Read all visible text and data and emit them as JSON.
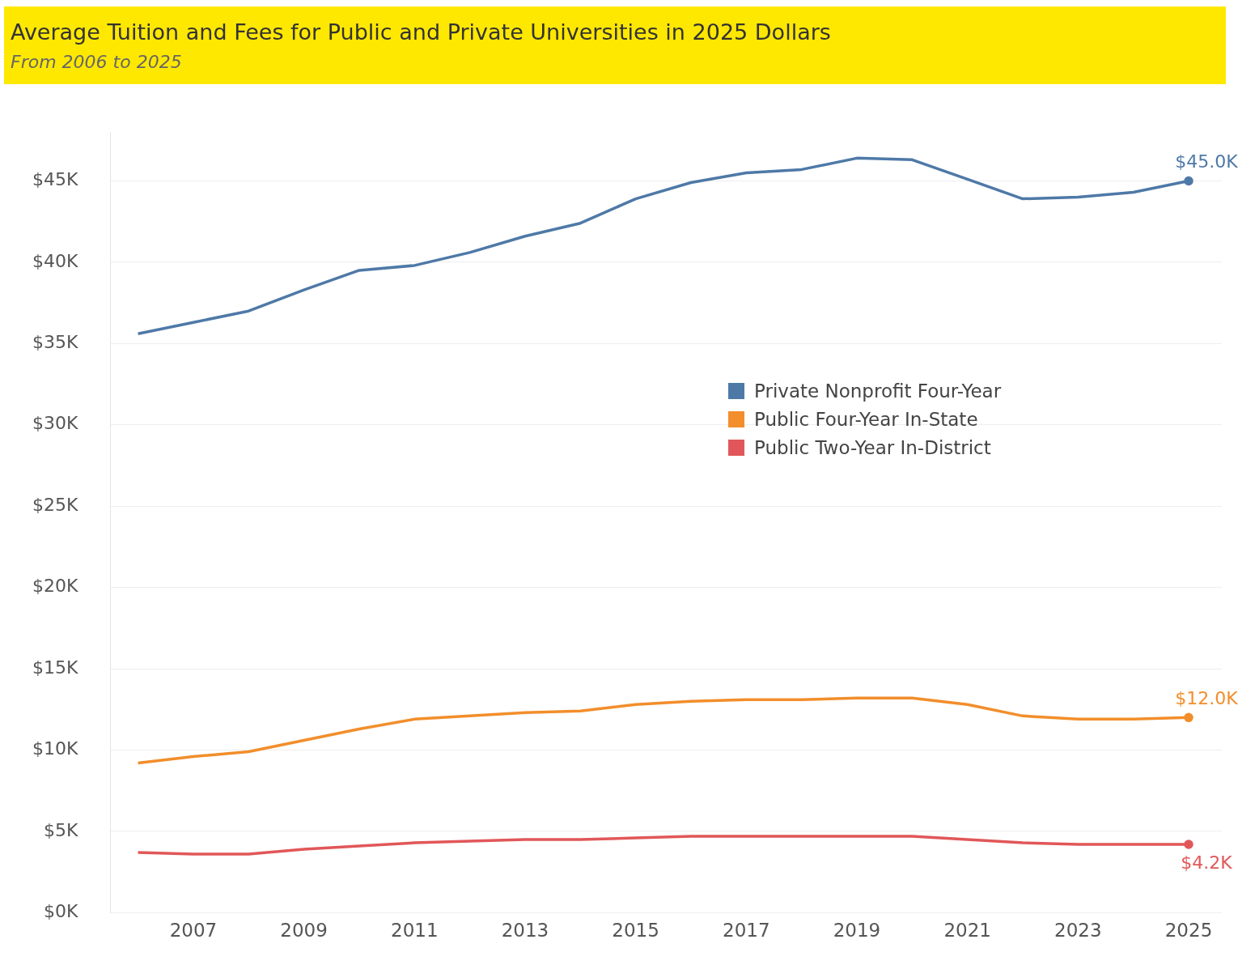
{
  "chart_data": {
    "type": "line",
    "title": "Average Tuition and Fees for Public and Private Universities in 2025 Dollars",
    "subtitle": "From 2006 to 2025",
    "x": [
      2006,
      2007,
      2008,
      2009,
      2010,
      2011,
      2012,
      2013,
      2014,
      2015,
      2016,
      2017,
      2018,
      2019,
      2020,
      2021,
      2022,
      2023,
      2024,
      2025
    ],
    "series": [
      {
        "name": "Private Nonprofit Four-Year",
        "color": "#4e79a7",
        "values": [
          35.6,
          36.3,
          37.0,
          38.3,
          39.5,
          39.8,
          40.6,
          41.6,
          42.4,
          43.9,
          44.9,
          45.5,
          45.7,
          46.4,
          46.3,
          45.1,
          43.9,
          44.0,
          44.3,
          45.0
        ],
        "value_labels": [
          null,
          null,
          null,
          null,
          null,
          null,
          null,
          null,
          null,
          null,
          null,
          null,
          null,
          null,
          null,
          null,
          null,
          null,
          null,
          "$45.0K"
        ]
      },
      {
        "name": "Public Four-Year In-State",
        "color": "#f28e2b",
        "values": [
          9.2,
          9.6,
          9.9,
          10.6,
          11.3,
          11.9,
          12.1,
          12.3,
          12.4,
          12.8,
          13.0,
          13.1,
          13.1,
          13.2,
          13.2,
          12.8,
          12.1,
          11.9,
          11.9,
          12.0
        ],
        "value_labels": [
          null,
          null,
          null,
          null,
          null,
          null,
          null,
          null,
          null,
          null,
          null,
          null,
          null,
          null,
          null,
          null,
          null,
          null,
          null,
          "$12.0K"
        ]
      },
      {
        "name": "Public Two-Year In-District",
        "color": "#e15759",
        "values": [
          3.7,
          3.6,
          3.6,
          3.9,
          4.1,
          4.3,
          4.4,
          4.5,
          4.5,
          4.6,
          4.7,
          4.7,
          4.7,
          4.7,
          4.7,
          4.5,
          4.3,
          4.2,
          4.2,
          4.2
        ],
        "value_labels": [
          null,
          null,
          null,
          null,
          null,
          null,
          null,
          null,
          null,
          null,
          null,
          null,
          null,
          null,
          null,
          null,
          null,
          null,
          null,
          "$4.2K"
        ]
      }
    ],
    "xlim": [
      2005.5,
      2025.6
    ],
    "xticks": [
      2007,
      2009,
      2011,
      2013,
      2015,
      2017,
      2019,
      2021,
      2023,
      2025
    ],
    "ylim": [
      0,
      48
    ],
    "yticks": [
      {
        "value": 0,
        "label": "$0K"
      },
      {
        "value": 5,
        "label": "$5K"
      },
      {
        "value": 10,
        "label": "$10K"
      },
      {
        "value": 15,
        "label": "$15K"
      },
      {
        "value": 20,
        "label": "$20K"
      },
      {
        "value": 25,
        "label": "$25K"
      },
      {
        "value": 30,
        "label": "$30K"
      },
      {
        "value": 35,
        "label": "$35K"
      },
      {
        "value": 40,
        "label": "$40K"
      },
      {
        "value": 45,
        "label": "$45K"
      }
    ],
    "grid": "y",
    "legend": "right"
  }
}
